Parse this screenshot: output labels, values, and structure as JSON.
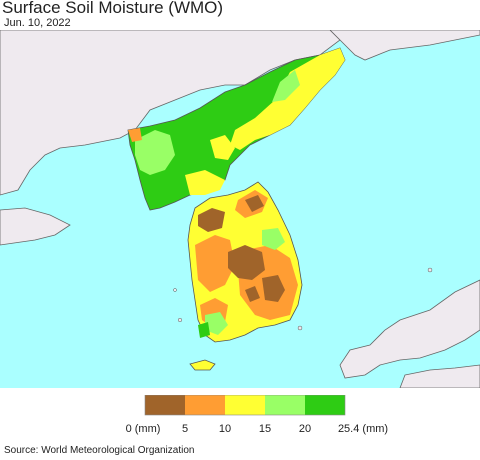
{
  "title": "Surface Soil Moisture (WMO)",
  "date": "Jun. 10, 2022",
  "source": "Source: World Meteorological Organization",
  "colors": {
    "sea": "#aaffff",
    "land_outside": "#efeaef",
    "border": "#555555"
  },
  "legend": {
    "colors": [
      "#a0642a",
      "#ff9d33",
      "#ffff33",
      "#99ff66",
      "#2ecc14"
    ],
    "ticks": [
      "0 (mm)",
      "5",
      "10",
      "15",
      "20",
      "25.4 (mm)"
    ]
  },
  "moisture_classes": [
    {
      "range": "0-5",
      "color": "#a0642a"
    },
    {
      "range": "5-10",
      "color": "#ff9d33"
    },
    {
      "range": "10-15",
      "color": "#ffff33"
    },
    {
      "range": "15-20",
      "color": "#99ff66"
    },
    {
      "range": "20-25.4",
      "color": "#2ecc14"
    }
  ]
}
